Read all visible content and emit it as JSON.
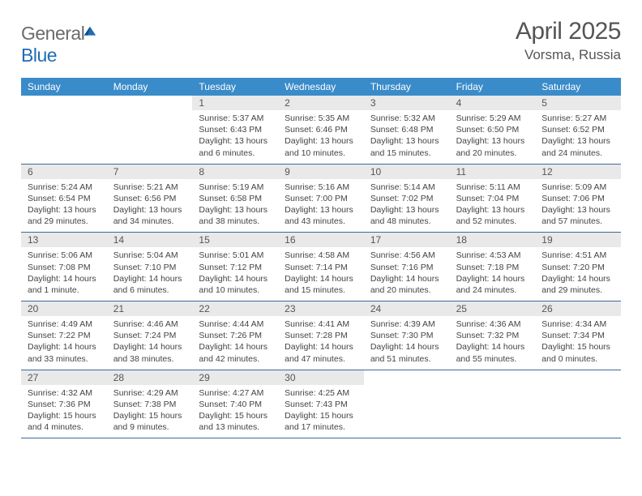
{
  "brand": {
    "name_part1": "General",
    "name_part2": "Blue"
  },
  "title": "April 2025",
  "location": "Vorsma, Russia",
  "colors": {
    "header_bg": "#3a8bc9",
    "header_text": "#ffffff",
    "daynum_bg": "#e9e9e9",
    "week_divider": "#3a6a9a",
    "text": "#444444",
    "title_text": "#555555"
  },
  "weekdays": [
    "Sunday",
    "Monday",
    "Tuesday",
    "Wednesday",
    "Thursday",
    "Friday",
    "Saturday"
  ],
  "weeks": [
    [
      {
        "day": "",
        "sunrise": "",
        "sunset": "",
        "daylight": ""
      },
      {
        "day": "",
        "sunrise": "",
        "sunset": "",
        "daylight": ""
      },
      {
        "day": "1",
        "sunrise": "Sunrise: 5:37 AM",
        "sunset": "Sunset: 6:43 PM",
        "daylight": "Daylight: 13 hours and 6 minutes."
      },
      {
        "day": "2",
        "sunrise": "Sunrise: 5:35 AM",
        "sunset": "Sunset: 6:46 PM",
        "daylight": "Daylight: 13 hours and 10 minutes."
      },
      {
        "day": "3",
        "sunrise": "Sunrise: 5:32 AM",
        "sunset": "Sunset: 6:48 PM",
        "daylight": "Daylight: 13 hours and 15 minutes."
      },
      {
        "day": "4",
        "sunrise": "Sunrise: 5:29 AM",
        "sunset": "Sunset: 6:50 PM",
        "daylight": "Daylight: 13 hours and 20 minutes."
      },
      {
        "day": "5",
        "sunrise": "Sunrise: 5:27 AM",
        "sunset": "Sunset: 6:52 PM",
        "daylight": "Daylight: 13 hours and 24 minutes."
      }
    ],
    [
      {
        "day": "6",
        "sunrise": "Sunrise: 5:24 AM",
        "sunset": "Sunset: 6:54 PM",
        "daylight": "Daylight: 13 hours and 29 minutes."
      },
      {
        "day": "7",
        "sunrise": "Sunrise: 5:21 AM",
        "sunset": "Sunset: 6:56 PM",
        "daylight": "Daylight: 13 hours and 34 minutes."
      },
      {
        "day": "8",
        "sunrise": "Sunrise: 5:19 AM",
        "sunset": "Sunset: 6:58 PM",
        "daylight": "Daylight: 13 hours and 38 minutes."
      },
      {
        "day": "9",
        "sunrise": "Sunrise: 5:16 AM",
        "sunset": "Sunset: 7:00 PM",
        "daylight": "Daylight: 13 hours and 43 minutes."
      },
      {
        "day": "10",
        "sunrise": "Sunrise: 5:14 AM",
        "sunset": "Sunset: 7:02 PM",
        "daylight": "Daylight: 13 hours and 48 minutes."
      },
      {
        "day": "11",
        "sunrise": "Sunrise: 5:11 AM",
        "sunset": "Sunset: 7:04 PM",
        "daylight": "Daylight: 13 hours and 52 minutes."
      },
      {
        "day": "12",
        "sunrise": "Sunrise: 5:09 AM",
        "sunset": "Sunset: 7:06 PM",
        "daylight": "Daylight: 13 hours and 57 minutes."
      }
    ],
    [
      {
        "day": "13",
        "sunrise": "Sunrise: 5:06 AM",
        "sunset": "Sunset: 7:08 PM",
        "daylight": "Daylight: 14 hours and 1 minute."
      },
      {
        "day": "14",
        "sunrise": "Sunrise: 5:04 AM",
        "sunset": "Sunset: 7:10 PM",
        "daylight": "Daylight: 14 hours and 6 minutes."
      },
      {
        "day": "15",
        "sunrise": "Sunrise: 5:01 AM",
        "sunset": "Sunset: 7:12 PM",
        "daylight": "Daylight: 14 hours and 10 minutes."
      },
      {
        "day": "16",
        "sunrise": "Sunrise: 4:58 AM",
        "sunset": "Sunset: 7:14 PM",
        "daylight": "Daylight: 14 hours and 15 minutes."
      },
      {
        "day": "17",
        "sunrise": "Sunrise: 4:56 AM",
        "sunset": "Sunset: 7:16 PM",
        "daylight": "Daylight: 14 hours and 20 minutes."
      },
      {
        "day": "18",
        "sunrise": "Sunrise: 4:53 AM",
        "sunset": "Sunset: 7:18 PM",
        "daylight": "Daylight: 14 hours and 24 minutes."
      },
      {
        "day": "19",
        "sunrise": "Sunrise: 4:51 AM",
        "sunset": "Sunset: 7:20 PM",
        "daylight": "Daylight: 14 hours and 29 minutes."
      }
    ],
    [
      {
        "day": "20",
        "sunrise": "Sunrise: 4:49 AM",
        "sunset": "Sunset: 7:22 PM",
        "daylight": "Daylight: 14 hours and 33 minutes."
      },
      {
        "day": "21",
        "sunrise": "Sunrise: 4:46 AM",
        "sunset": "Sunset: 7:24 PM",
        "daylight": "Daylight: 14 hours and 38 minutes."
      },
      {
        "day": "22",
        "sunrise": "Sunrise: 4:44 AM",
        "sunset": "Sunset: 7:26 PM",
        "daylight": "Daylight: 14 hours and 42 minutes."
      },
      {
        "day": "23",
        "sunrise": "Sunrise: 4:41 AM",
        "sunset": "Sunset: 7:28 PM",
        "daylight": "Daylight: 14 hours and 47 minutes."
      },
      {
        "day": "24",
        "sunrise": "Sunrise: 4:39 AM",
        "sunset": "Sunset: 7:30 PM",
        "daylight": "Daylight: 14 hours and 51 minutes."
      },
      {
        "day": "25",
        "sunrise": "Sunrise: 4:36 AM",
        "sunset": "Sunset: 7:32 PM",
        "daylight": "Daylight: 14 hours and 55 minutes."
      },
      {
        "day": "26",
        "sunrise": "Sunrise: 4:34 AM",
        "sunset": "Sunset: 7:34 PM",
        "daylight": "Daylight: 15 hours and 0 minutes."
      }
    ],
    [
      {
        "day": "27",
        "sunrise": "Sunrise: 4:32 AM",
        "sunset": "Sunset: 7:36 PM",
        "daylight": "Daylight: 15 hours and 4 minutes."
      },
      {
        "day": "28",
        "sunrise": "Sunrise: 4:29 AM",
        "sunset": "Sunset: 7:38 PM",
        "daylight": "Daylight: 15 hours and 9 minutes."
      },
      {
        "day": "29",
        "sunrise": "Sunrise: 4:27 AM",
        "sunset": "Sunset: 7:40 PM",
        "daylight": "Daylight: 15 hours and 13 minutes."
      },
      {
        "day": "30",
        "sunrise": "Sunrise: 4:25 AM",
        "sunset": "Sunset: 7:43 PM",
        "daylight": "Daylight: 15 hours and 17 minutes."
      },
      {
        "day": "",
        "sunrise": "",
        "sunset": "",
        "daylight": ""
      },
      {
        "day": "",
        "sunrise": "",
        "sunset": "",
        "daylight": ""
      },
      {
        "day": "",
        "sunrise": "",
        "sunset": "",
        "daylight": ""
      }
    ]
  ]
}
